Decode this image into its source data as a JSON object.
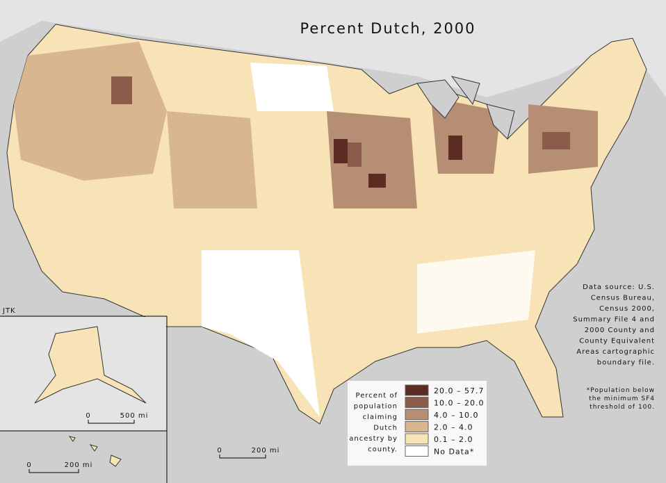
{
  "title": "Percent Dutch, 2000",
  "author": "JTK",
  "source_lines": [
    "Data source:  U.S.",
    "Census Bureau,",
    "Census 2000,",
    "Summary File 4 and",
    "2000 County and",
    "County Equivalent",
    "Areas cartographic",
    "boundary file."
  ],
  "footnote_lines": [
    "*Population below",
    "the minimum SF4",
    "threshold of 100."
  ],
  "legend": {
    "title_lines": [
      "Percent of",
      "population",
      "claiming",
      "Dutch",
      "ancestry by",
      "county."
    ],
    "items": [
      {
        "label": "20.0 – 57.7",
        "color": "#5b2b24"
      },
      {
        "label": "10.0 – 20.0",
        "color": "#8c5c4b"
      },
      {
        "label": "4.0 – 10.0",
        "color": "#b58e73"
      },
      {
        "label": "2.0 – 4.0",
        "color": "#d8b690"
      },
      {
        "label": "0.1 – 2.0",
        "color": "#f7e3b6"
      },
      {
        "label": "No Data*",
        "color": "#ffffff"
      }
    ]
  },
  "scale_bars": {
    "alaska": {
      "zero": "0",
      "label": "500 mi"
    },
    "hawaii": {
      "zero": "0",
      "label": "200 mi"
    },
    "mainland": {
      "zero": "0",
      "label": "200 mi"
    }
  }
}
